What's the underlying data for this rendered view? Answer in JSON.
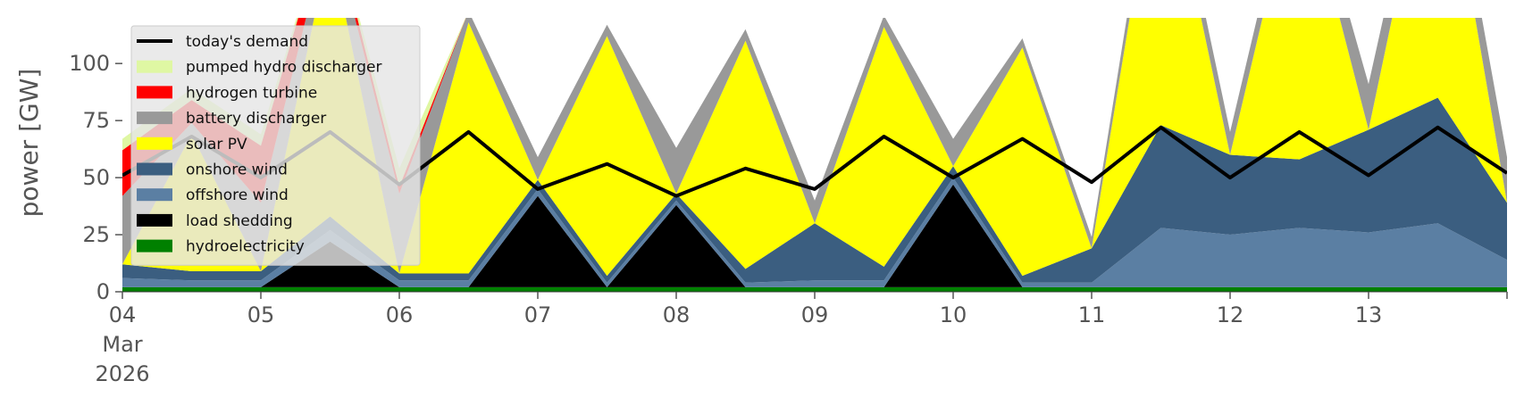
{
  "chart_data": {
    "type": "area",
    "title": "",
    "xlabel": "",
    "ylabel": "power [GW]",
    "ylim": [
      0,
      120
    ],
    "xlim": [
      "2026-03-04T00:00",
      "2026-03-14T00:00"
    ],
    "yticks": [
      0,
      25,
      50,
      75,
      100
    ],
    "xticks": [
      {
        "date": "2026-03-04",
        "label": "04",
        "sub": [
          "Mar",
          "2026"
        ]
      },
      {
        "date": "2026-03-05",
        "label": "05"
      },
      {
        "date": "2026-03-06",
        "label": "06"
      },
      {
        "date": "2026-03-07",
        "label": "07"
      },
      {
        "date": "2026-03-08",
        "label": "08"
      },
      {
        "date": "2026-03-09",
        "label": "09"
      },
      {
        "date": "2026-03-10",
        "label": "10"
      },
      {
        "date": "2026-03-11",
        "label": "11"
      },
      {
        "date": "2026-03-12",
        "label": "12"
      },
      {
        "date": "2026-03-13",
        "label": "13"
      }
    ],
    "grid": false,
    "legend_position": "top-left",
    "x": [
      "2026-03-04T00:00",
      "2026-03-04T12:00",
      "2026-03-05T00:00",
      "2026-03-05T12:00",
      "2026-03-06T00:00",
      "2026-03-06T12:00",
      "2026-03-07T00:00",
      "2026-03-07T12:00",
      "2026-03-08T00:00",
      "2026-03-08T12:00",
      "2026-03-09T00:00",
      "2026-03-09T12:00",
      "2026-03-10T00:00",
      "2026-03-10T12:00",
      "2026-03-11T00:00",
      "2026-03-11T12:00",
      "2026-03-12T00:00",
      "2026-03-12T12:00",
      "2026-03-13T00:00",
      "2026-03-13T12:00",
      "2026-03-14T00:00"
    ],
    "series": [
      {
        "name": "hydroelectricity",
        "color": "#008000",
        "values": [
          2,
          2,
          2,
          2,
          2,
          2,
          2,
          2,
          2,
          2,
          2,
          2,
          2,
          2,
          2,
          2,
          2,
          2,
          2,
          2,
          2
        ]
      },
      {
        "name": "load shedding",
        "color": "#000000",
        "values": [
          0,
          0,
          0,
          20,
          0,
          0,
          40,
          0,
          36,
          0,
          0,
          0,
          45,
          0,
          0,
          0,
          0,
          0,
          0,
          0,
          0
        ]
      },
      {
        "name": "offshore wind",
        "color": "#5b7fa3",
        "values": [
          4,
          3,
          3,
          5,
          3,
          3,
          3,
          2,
          2,
          2,
          3,
          3,
          3,
          2,
          2,
          26,
          23,
          26,
          24,
          28,
          12
        ]
      },
      {
        "name": "onshore wind",
        "color": "#3b5e80",
        "values": [
          6,
          4,
          4,
          6,
          3,
          3,
          4,
          3,
          3,
          6,
          25,
          6,
          5,
          3,
          15,
          45,
          35,
          30,
          45,
          55,
          25
        ]
      },
      {
        "name": "solar PV",
        "color": "#ffff00",
        "values": [
          0,
          60,
          0,
          120,
          0,
          110,
          0,
          105,
          0,
          100,
          0,
          105,
          0,
          100,
          0,
          130,
          0,
          130,
          0,
          130,
          0
        ]
      },
      {
        "name": "battery discharger",
        "color": "#999999",
        "values": [
          30,
          5,
          30,
          10,
          35,
          5,
          10,
          5,
          20,
          5,
          10,
          5,
          12,
          4,
          5,
          10,
          10,
          10,
          20,
          12,
          20
        ]
      },
      {
        "name": "hydrogen turbine",
        "color": "#ff0000",
        "values": [
          20,
          10,
          25,
          5,
          3,
          0,
          0,
          0,
          0,
          0,
          0,
          0,
          0,
          0,
          0,
          0,
          0,
          0,
          0,
          0,
          0
        ]
      },
      {
        "name": "pumped hydro discharger",
        "color": "#dff7a3",
        "values": [
          5,
          5,
          5,
          0,
          8,
          0,
          0,
          0,
          0,
          0,
          0,
          0,
          0,
          0,
          0,
          0,
          0,
          0,
          0,
          0,
          0
        ]
      }
    ],
    "demand": {
      "name": "today's demand",
      "color": "#000000",
      "values": [
        51,
        68,
        50,
        70,
        47,
        70,
        45,
        56,
        42,
        54,
        45,
        68,
        50,
        67,
        48,
        72,
        50,
        70,
        51,
        72,
        52
      ]
    }
  }
}
